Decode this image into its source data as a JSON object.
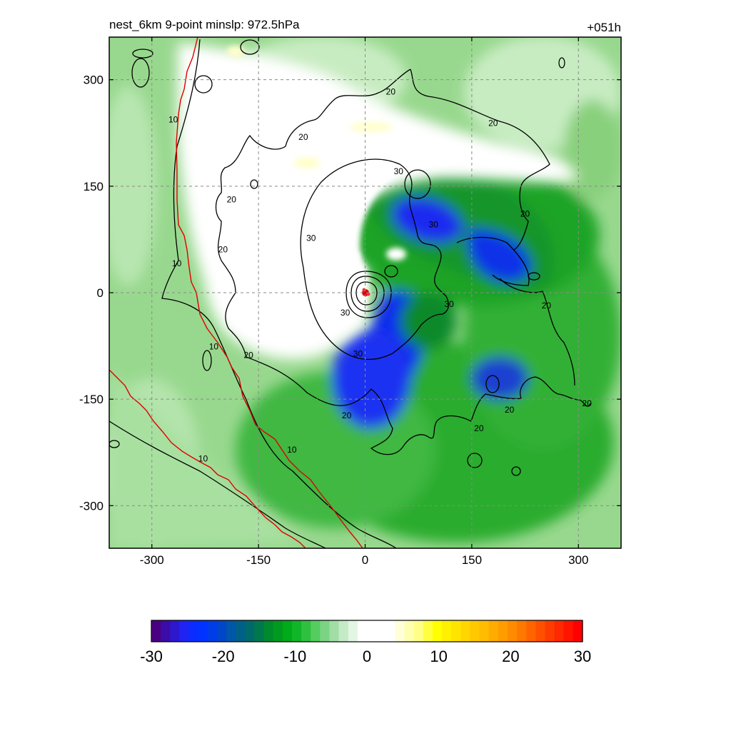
{
  "chart_data": {
    "type": "heatmap",
    "title": "nest_6km  9-point minslp: 972.5hPa",
    "time_label": "+051h",
    "xlabel": "",
    "ylabel": "",
    "xlim": [
      -360,
      360
    ],
    "ylim": [
      -360,
      360
    ],
    "x_ticks": [
      -300,
      -150,
      0,
      150,
      300
    ],
    "y_ticks": [
      300,
      150,
      0,
      -150,
      -300
    ],
    "grid": true,
    "storm_center": [
      0,
      0
    ],
    "contour_levels": [
      10,
      20,
      30
    ],
    "contour_labels": [
      {
        "text": "10",
        "x": -270,
        "y": 244
      },
      {
        "text": "10",
        "x": -265,
        "y": 41
      },
      {
        "text": "10",
        "x": -213,
        "y": -76
      },
      {
        "text": "10",
        "x": -103,
        "y": -221
      },
      {
        "text": "10",
        "x": -228,
        "y": -234
      },
      {
        "text": "20",
        "x": -87,
        "y": 219
      },
      {
        "text": "20",
        "x": 36,
        "y": 283
      },
      {
        "text": "20",
        "x": 180,
        "y": 239
      },
      {
        "text": "20",
        "x": -188,
        "y": 131
      },
      {
        "text": "20",
        "x": -200,
        "y": 61
      },
      {
        "text": "20",
        "x": -164,
        "y": -88
      },
      {
        "text": "20",
        "x": -26,
        "y": -173
      },
      {
        "text": "20",
        "x": 225,
        "y": 111
      },
      {
        "text": "20",
        "x": 255,
        "y": -18
      },
      {
        "text": "20",
        "x": 203,
        "y": -165
      },
      {
        "text": "20",
        "x": 160,
        "y": -191
      },
      {
        "text": "20",
        "x": 312,
        "y": -156
      },
      {
        "text": "30",
        "x": 47,
        "y": 171
      },
      {
        "text": "30",
        "x": 96,
        "y": 96
      },
      {
        "text": "30",
        "x": -76,
        "y": 77
      },
      {
        "text": "30",
        "x": -28,
        "y": -28
      },
      {
        "text": "30",
        "x": -10,
        "y": -86
      },
      {
        "text": "30",
        "x": 118,
        "y": -16
      }
    ],
    "colorbar": {
      "min": -30,
      "max": 30,
      "ticks": [
        -30,
        -20,
        -10,
        0,
        10,
        20,
        30
      ],
      "colors": [
        "#4b0082",
        "#3c0ca8",
        "#2d18ce",
        "#1f24f4",
        "#0a2cff",
        "#0033ff",
        "#003ce8",
        "#0046c8",
        "#0056a8",
        "#006088",
        "#006a6a",
        "#00784e",
        "#008a2e",
        "#009a1e",
        "#00aa18",
        "#10b628",
        "#30c040",
        "#55cc60",
        "#7ad484",
        "#a0dea6",
        "#c4eac6",
        "#e3f5e3",
        "#ffffff",
        "#ffffff",
        "#ffffff",
        "#ffffff",
        "#ffffd8",
        "#ffffb0",
        "#ffff88",
        "#ffff40",
        "#ffff00",
        "#fff000",
        "#ffe400",
        "#ffd600",
        "#ffc800",
        "#ffbc00",
        "#ffac00",
        "#ff9c00",
        "#ff8c00",
        "#ff7800",
        "#ff6400",
        "#ff5000",
        "#ff3c00",
        "#ff2800",
        "#ff1400",
        "#ff0000"
      ]
    }
  }
}
